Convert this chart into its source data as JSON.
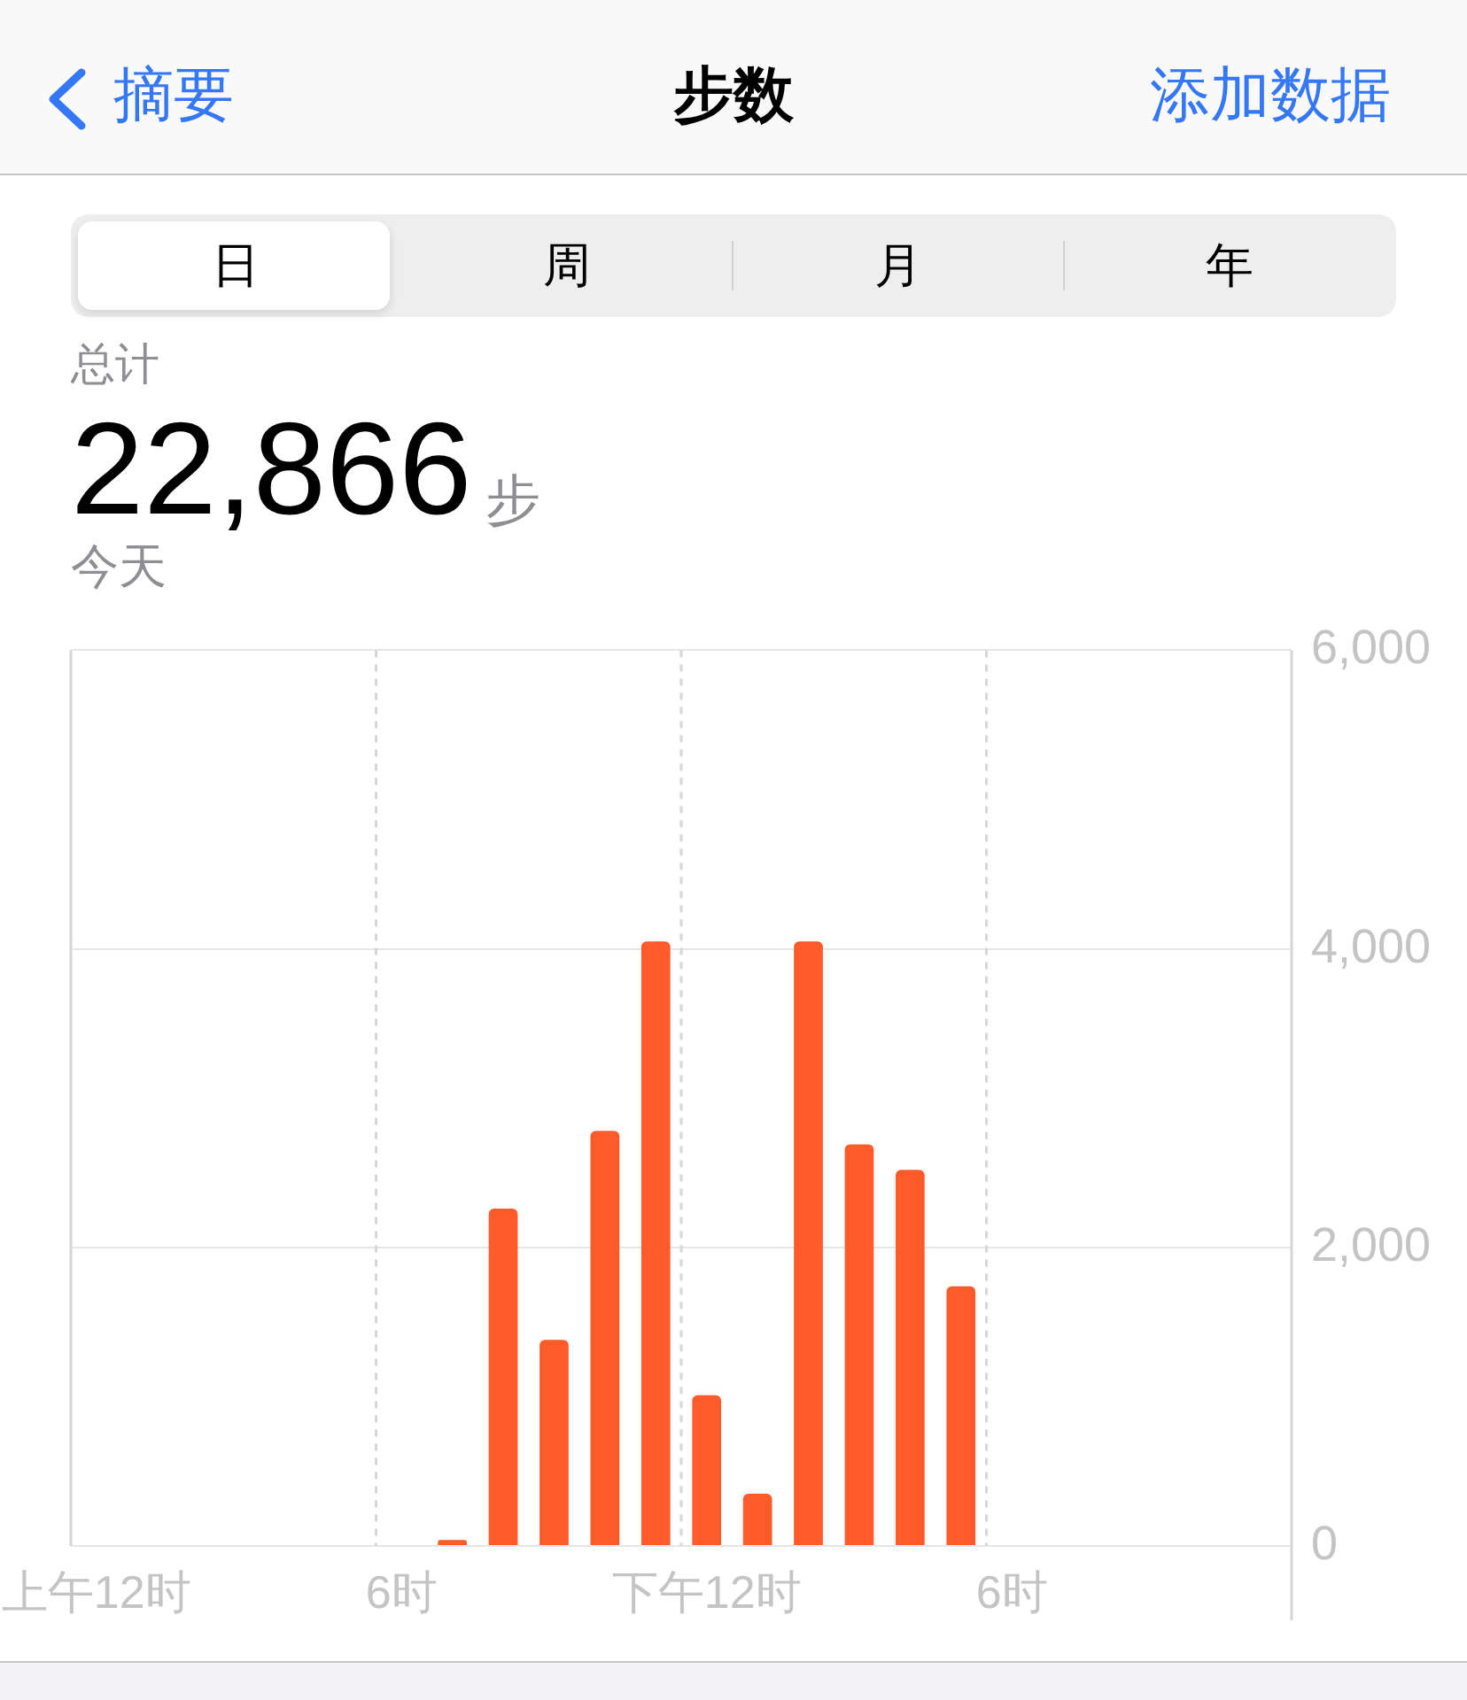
{
  "chart_data": {
    "type": "bar",
    "title": "步数",
    "annotations": [
      "摘要",
      "添加数据",
      "日",
      "周",
      "月",
      "年",
      "总计",
      "22,866",
      "步",
      "今天"
    ],
    "categories": [
      "上午12时",
      null,
      null,
      null,
      null,
      null,
      "6时",
      null,
      null,
      null,
      null,
      null,
      "下午12时",
      null,
      null,
      null,
      null,
      null,
      "6时",
      null,
      null,
      null,
      null,
      null
    ],
    "values": [
      null,
      null,
      null,
      null,
      null,
      null,
      null,
      40,
      2260,
      1380,
      2780,
      4050,
      1010,
      350,
      4050,
      2690,
      2520,
      1740,
      null,
      null,
      null,
      null,
      null,
      null
    ],
    "color": "#fe5b2b",
    "ylim": [
      0,
      6000
    ],
    "yticks": [
      0,
      {
        "value": 2000,
        "label": "2,000"
      },
      {
        "value": 4000,
        "label": "4,000"
      },
      {
        "value": 6000,
        "label": "6,000"
      }
    ],
    "grid": true
  }
}
